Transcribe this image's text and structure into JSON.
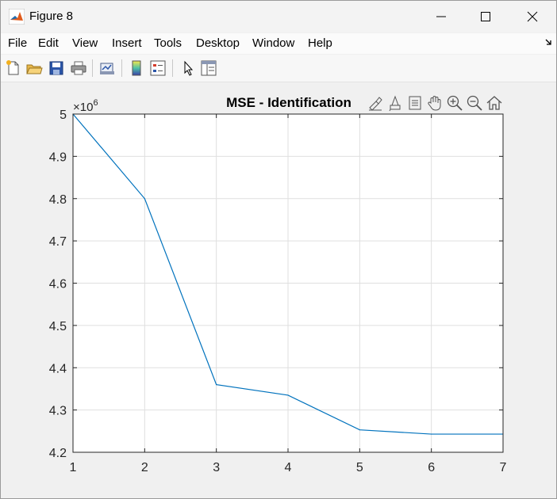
{
  "window": {
    "title": "Figure 8",
    "controls": [
      "minimize",
      "maximize",
      "close"
    ],
    "app_icon": "matlab-icon"
  },
  "menu": {
    "items": [
      "File",
      "Edit",
      "View",
      "Insert",
      "Tools",
      "Desktop",
      "Window",
      "Help"
    ]
  },
  "toolbar": {
    "buttons": [
      "new-figure-icon",
      "open-file-icon",
      "save-icon",
      "print-icon",
      "link-plot-icon",
      "insert-colorbar-icon",
      "insert-legend-icon",
      "edit-plot-icon",
      "open-property-inspector-icon"
    ]
  },
  "axes_toolbar": {
    "buttons": [
      "brush-icon",
      "data-tips-icon",
      "export-icon",
      "pan-icon",
      "zoom-in-icon",
      "zoom-out-icon",
      "home-icon"
    ]
  },
  "chart_data": {
    "type": "line",
    "title": "MSE - Identification",
    "xlabel": "",
    "ylabel": "",
    "exponent_label": "×10",
    "exponent_power": "6",
    "x": [
      1,
      2,
      3,
      4,
      5,
      6,
      7
    ],
    "series": [
      {
        "values": [
          5.0,
          4.8,
          4.36,
          4.335,
          4.253,
          4.243,
          4.243
        ],
        "color": "#0072bd"
      }
    ],
    "xlim": [
      1,
      7
    ],
    "ylim": [
      4.2,
      5.0
    ],
    "xticks": [
      "1",
      "2",
      "3",
      "4",
      "5",
      "6",
      "7"
    ],
    "yticks": [
      "4.2",
      "4.3",
      "4.4",
      "4.5",
      "4.6",
      "4.7",
      "4.8",
      "4.9",
      "5"
    ],
    "grid": true
  }
}
